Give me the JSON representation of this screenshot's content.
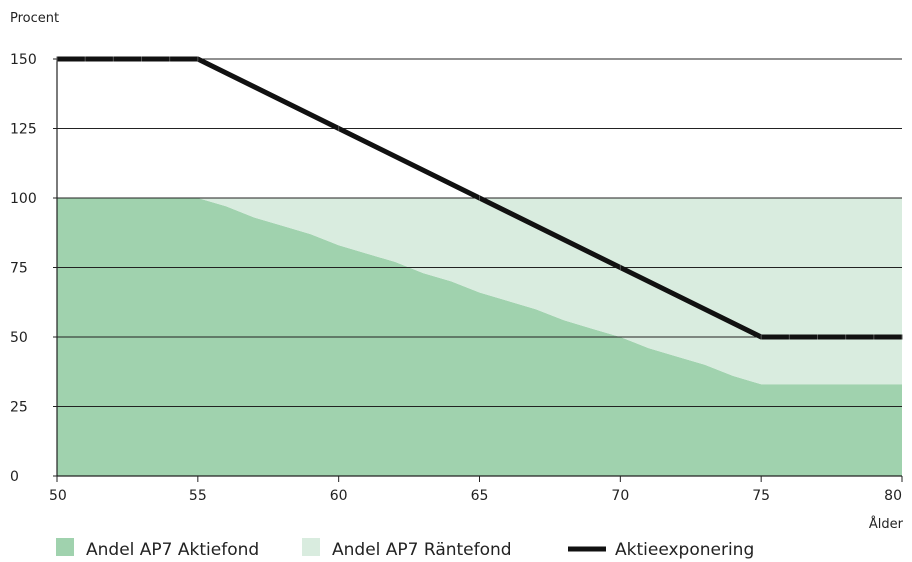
{
  "chart_data": {
    "type": "area",
    "ylabel": "Procent",
    "xlabel": "Ålder",
    "xlim": [
      50,
      80
    ],
    "ylim": [
      0,
      150
    ],
    "x_ticks": [
      "50",
      "55",
      "60",
      "65",
      "70",
      "75",
      "80"
    ],
    "y_ticks": [
      "0",
      "25",
      "50",
      "75",
      "100",
      "125",
      "150"
    ],
    "grid": "horizontal",
    "legend_position": "bottom",
    "series": [
      {
        "name": "Andel AP7 Aktiefond",
        "type": "area",
        "color": "#a0d2ae",
        "x": [
          50,
          55,
          56,
          57,
          58,
          59,
          60,
          61,
          62,
          63,
          64,
          65,
          66,
          67,
          68,
          69,
          70,
          71,
          72,
          73,
          74,
          75,
          80
        ],
        "values": [
          100,
          100,
          97,
          93,
          90,
          87,
          83,
          80,
          77,
          73,
          70,
          66,
          63,
          60,
          56,
          53,
          50,
          46,
          43,
          40,
          36,
          33,
          33
        ]
      },
      {
        "name": "Andel AP7 Räntefond",
        "type": "area",
        "color": "#d9ecdf",
        "x": [
          50,
          55,
          56,
          57,
          58,
          59,
          60,
          61,
          62,
          63,
          64,
          65,
          66,
          67,
          68,
          69,
          70,
          71,
          72,
          73,
          74,
          75,
          80
        ],
        "values": [
          0,
          0,
          3,
          7,
          10,
          13,
          17,
          20,
          23,
          27,
          30,
          34,
          37,
          40,
          44,
          47,
          50,
          54,
          57,
          60,
          64,
          67,
          67
        ]
      },
      {
        "name": "Aktieexponering",
        "type": "line",
        "color": "#111111",
        "x": [
          50,
          51,
          52,
          53,
          54,
          55,
          60,
          65,
          70,
          75,
          76,
          77,
          78,
          79,
          80
        ],
        "values": [
          150,
          150,
          150,
          150,
          150,
          150,
          125,
          100,
          75,
          50,
          50,
          50,
          50,
          50,
          50
        ]
      }
    ]
  }
}
